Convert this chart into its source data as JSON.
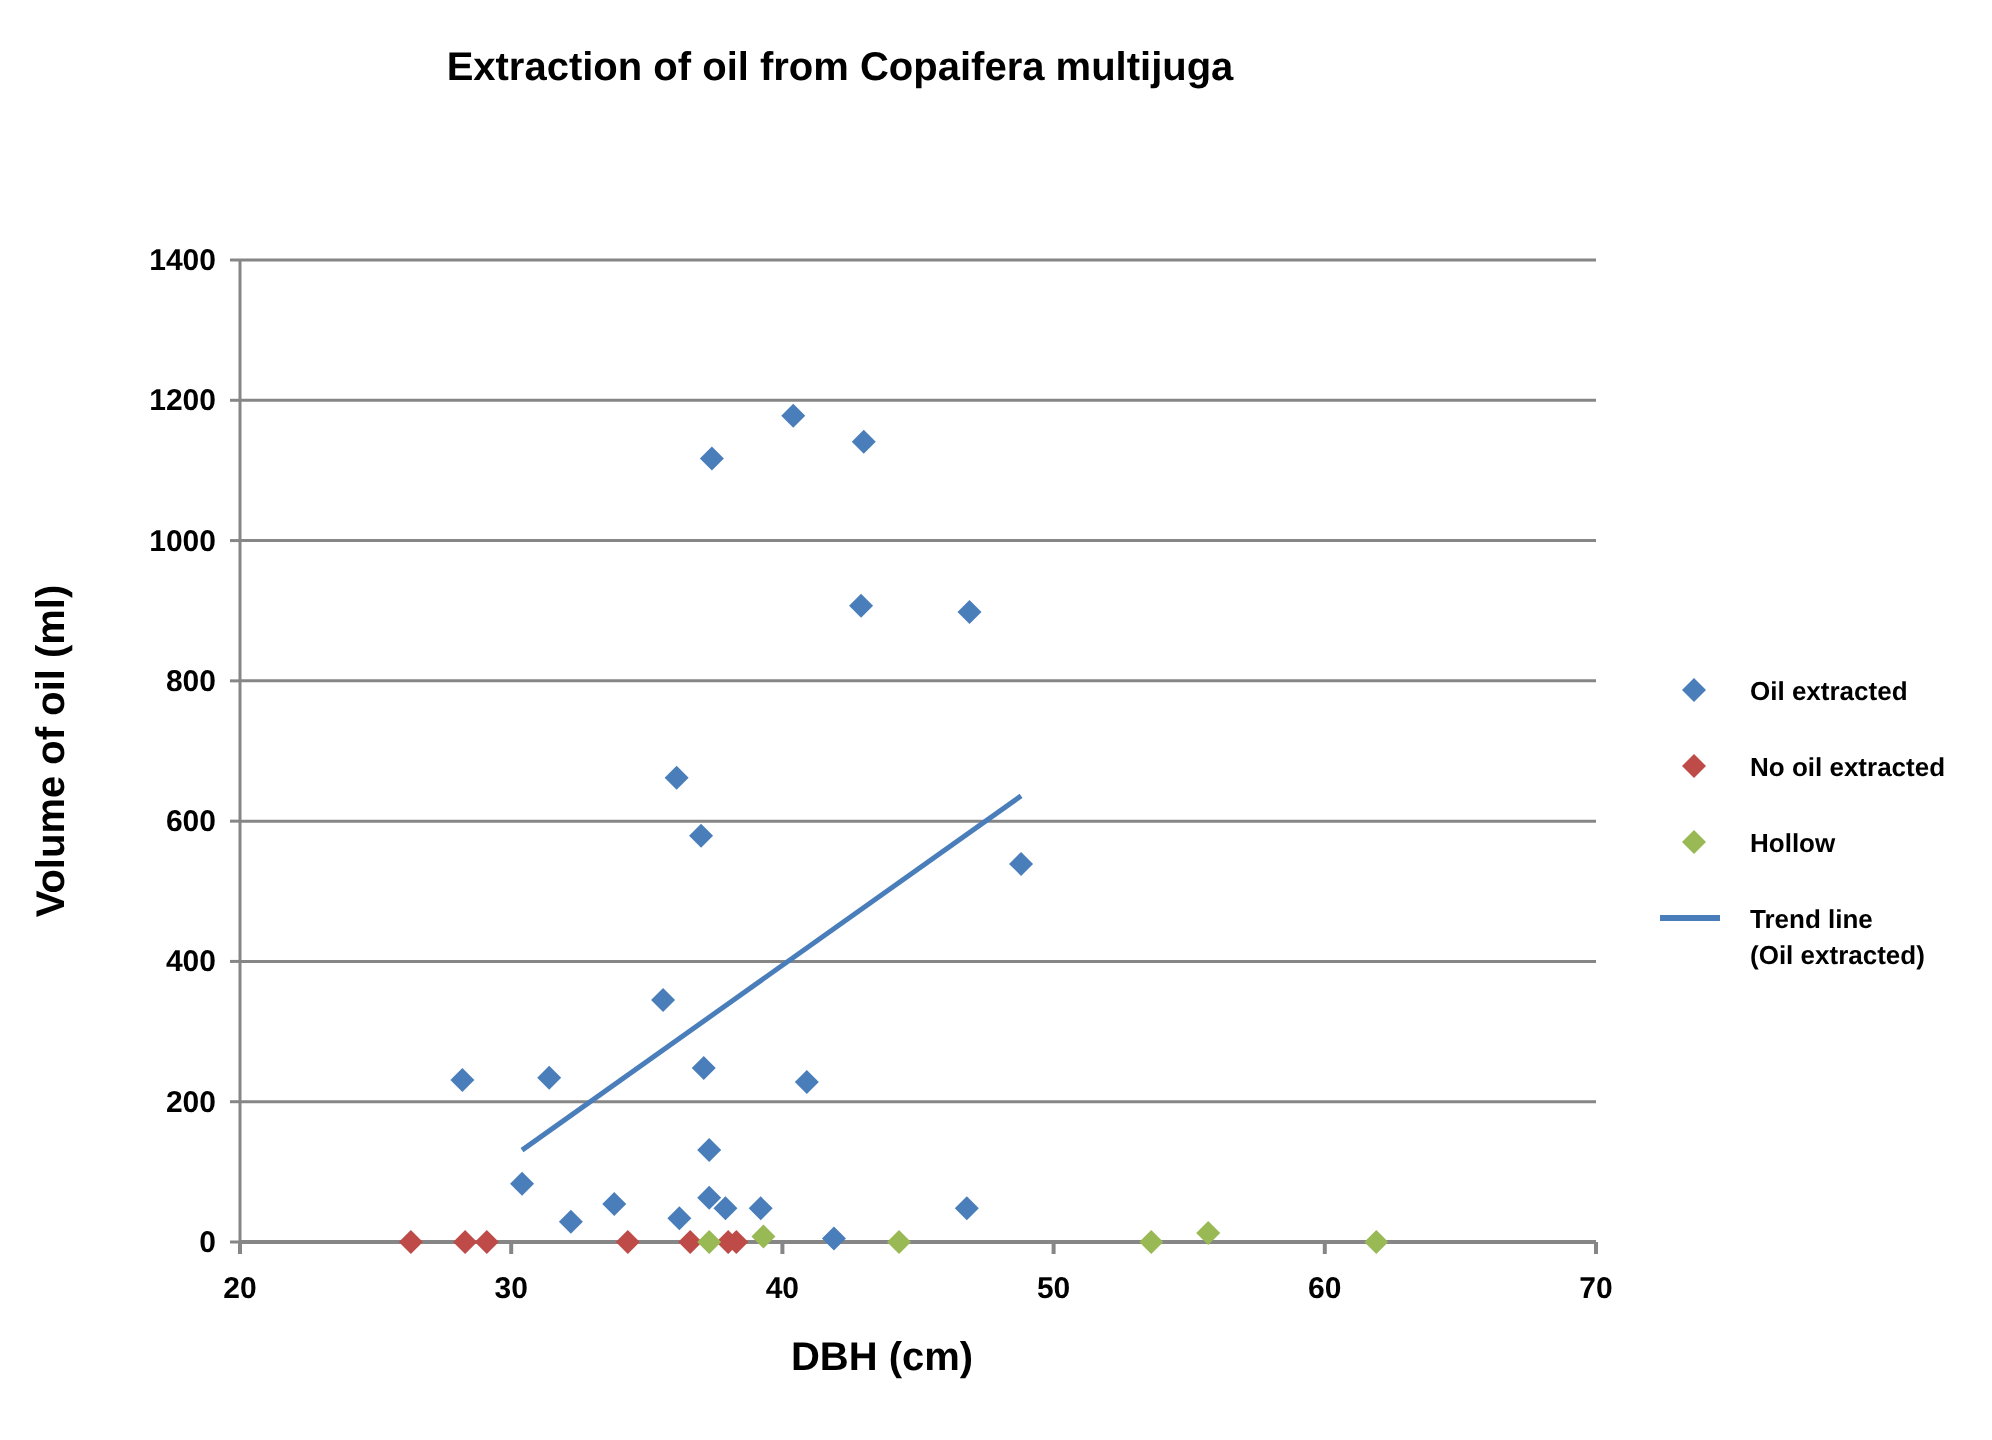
{
  "chart_data": {
    "type": "scatter",
    "title": "Extraction of oil from Copaifera multijuga",
    "xlabel": "DBH (cm)",
    "ylabel": "Volume of oil (ml)",
    "xlim": [
      20,
      70
    ],
    "xticks": [
      20,
      30,
      40,
      50,
      60,
      70
    ],
    "ylim": [
      0,
      1400
    ],
    "yticks": [
      0,
      200,
      400,
      600,
      800,
      1000,
      1200,
      1400
    ],
    "grid": "y",
    "legend": "right",
    "marker": "diamond",
    "series": [
      {
        "name": "Oil extracted",
        "color": "#4a7ebb",
        "x": [
          28.2,
          30.4,
          31.4,
          32.2,
          33.8,
          35.6,
          36.1,
          36.2,
          37.0,
          37.1,
          37.3,
          37.3,
          37.4,
          37.9,
          39.2,
          40.4,
          40.9,
          41.9,
          42.9,
          43.0,
          46.8,
          46.9,
          48.8
        ],
        "values": [
          231,
          83,
          234,
          29,
          54,
          345,
          662,
          34,
          579,
          248,
          131,
          63,
          1117,
          48,
          48,
          1178,
          228,
          5,
          907,
          1141,
          48,
          898,
          539
        ]
      },
      {
        "name": "No oil extracted",
        "color": "#be4b48",
        "x": [
          26.3,
          28.3,
          29.1,
          34.3,
          36.6,
          38.0,
          38.3
        ],
        "values": [
          0,
          0,
          0,
          0,
          0,
          0,
          0
        ]
      },
      {
        "name": "Hollow",
        "color": "#98b954",
        "x": [
          37.3,
          39.3,
          44.3,
          53.6,
          55.7,
          61.9
        ],
        "values": [
          0,
          8,
          0,
          0,
          13,
          0
        ]
      },
      {
        "name": "Trend line (Oil extracted)",
        "type": "line",
        "marker": "none",
        "line_style": "solid",
        "color": "#4a7ebb",
        "x": [
          30.4,
          48.8
        ],
        "values": [
          131,
          636
        ]
      }
    ]
  }
}
